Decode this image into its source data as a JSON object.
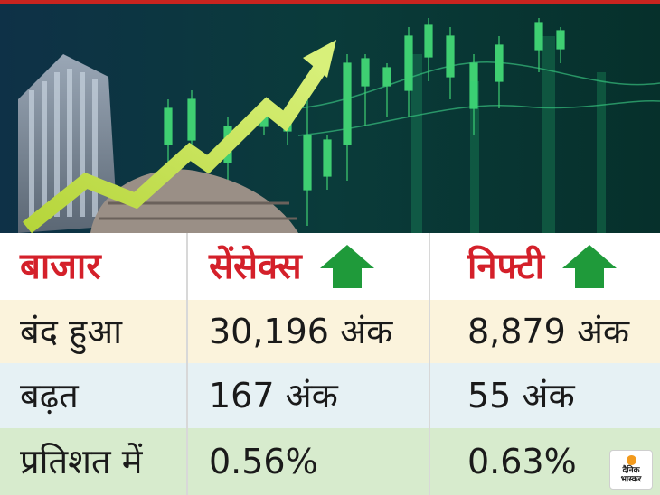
{
  "colors": {
    "header_text": "#d4202a",
    "up_arrow": "#1f9a3a",
    "row_header_bg": "#ffffff",
    "row_closed_bg": "#fbf3dc",
    "row_gain_bg": "#e6f1f4",
    "row_percent_bg": "#d7ebcd"
  },
  "hero": {
    "icon": "stock-market-chart-graphic"
  },
  "table": {
    "headers": {
      "market": "बाजार",
      "sensex": "सेंसेक्स",
      "nifty": "निफ्टी"
    },
    "rows": [
      {
        "label": "बंद हुआ",
        "sensex": "30,196 अंक",
        "nifty": "8,879 अंक"
      },
      {
        "label": "बढ़त",
        "sensex": "167 अंक",
        "nifty": "55 अंक"
      },
      {
        "label": "प्रतिशत में",
        "sensex": "0.56%",
        "nifty": "0.63%"
      }
    ]
  },
  "logo": {
    "line1": "दैनिक",
    "line2": "भास्कर"
  }
}
